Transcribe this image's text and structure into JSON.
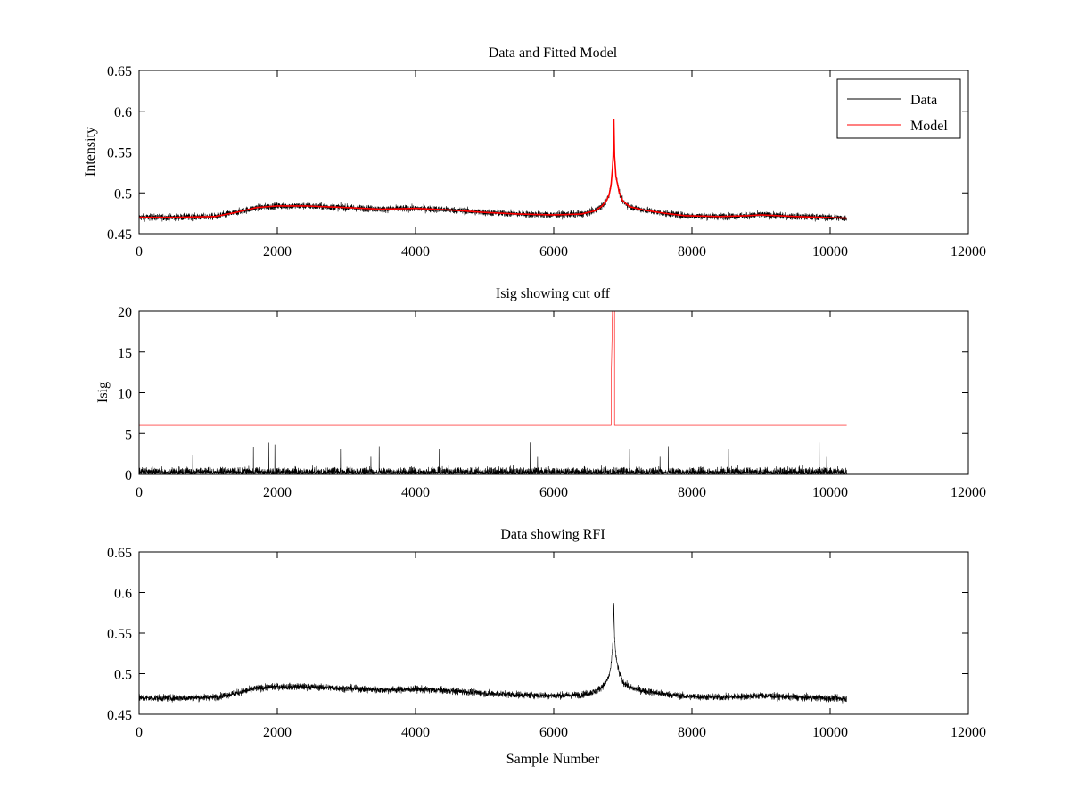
{
  "figure": {
    "background": "#ffffff"
  },
  "chart_data": [
    {
      "id": "top",
      "type": "line",
      "title": "Data and Fitted Model",
      "xlabel": "",
      "ylabel": "Intensity",
      "xlim": [
        0,
        12000
      ],
      "ylim": [
        0.45,
        0.65
      ],
      "xticks": [
        0,
        2000,
        4000,
        6000,
        8000,
        10000,
        12000
      ],
      "xtick_labels": [
        "0",
        "2000",
        "4000",
        "6000",
        "8000",
        "10000",
        "12000"
      ],
      "yticks": [
        0.45,
        0.5,
        0.55,
        0.6,
        0.65
      ],
      "ytick_labels": [
        "0.45",
        "0.5",
        "0.55",
        "0.6",
        "0.65"
      ],
      "grid": false,
      "legend": {
        "placement": "top-right",
        "entries": [
          "Data",
          "Model"
        ]
      },
      "series": [
        {
          "name": "Data",
          "color": "#000000",
          "kind": "noisy",
          "n_samples": 10240,
          "noise_amplitude": 0.004,
          "baseline": {
            "x": [
              0,
              500,
              1100,
              1400,
              1700,
              2000,
              2400,
              3000,
              3500,
              4000,
              4500,
              5000,
              5500,
              6000,
              6400,
              6600,
              6700,
              6760,
              6800,
              6830,
              6850,
              6860,
              6870,
              6880,
              6900,
              6950,
              7000,
              7100,
              7300,
              7600,
              7900,
              8400,
              8800,
              9000,
              9500,
              10240
            ],
            "y": [
              0.47,
              0.47,
              0.471,
              0.476,
              0.482,
              0.484,
              0.484,
              0.482,
              0.48,
              0.481,
              0.479,
              0.476,
              0.474,
              0.473,
              0.474,
              0.478,
              0.484,
              0.49,
              0.497,
              0.51,
              0.53,
              0.545,
              0.59,
              0.545,
              0.52,
              0.5,
              0.49,
              0.483,
              0.479,
              0.475,
              0.472,
              0.471,
              0.472,
              0.473,
              0.471,
              0.469
            ]
          }
        },
        {
          "name": "Model",
          "color": "#ff0000",
          "kind": "smooth",
          "baseline": {
            "x": [
              0,
              500,
              1100,
              1400,
              1700,
              2000,
              2400,
              3000,
              3500,
              4000,
              4500,
              5000,
              5500,
              6000,
              6400,
              6600,
              6700,
              6760,
              6800,
              6830,
              6850,
              6860,
              6870,
              6880,
              6900,
              6950,
              7000,
              7100,
              7300,
              7600,
              7900,
              8400,
              8800,
              9000,
              9500,
              10240
            ],
            "y": [
              0.47,
              0.47,
              0.471,
              0.476,
              0.482,
              0.484,
              0.484,
              0.482,
              0.48,
              0.481,
              0.479,
              0.476,
              0.474,
              0.473,
              0.474,
              0.478,
              0.484,
              0.49,
              0.497,
              0.51,
              0.53,
              0.545,
              0.59,
              0.545,
              0.52,
              0.5,
              0.49,
              0.483,
              0.479,
              0.475,
              0.472,
              0.471,
              0.472,
              0.473,
              0.471,
              0.469
            ]
          }
        }
      ]
    },
    {
      "id": "middle",
      "type": "line",
      "title": "Isig showing cut off",
      "xlabel": "",
      "ylabel": "Isig",
      "xlim": [
        0,
        12000
      ],
      "ylim": [
        0,
        20
      ],
      "xticks": [
        0,
        2000,
        4000,
        6000,
        8000,
        10000,
        12000
      ],
      "xtick_labels": [
        "0",
        "2000",
        "4000",
        "6000",
        "8000",
        "10000",
        "12000"
      ],
      "yticks": [
        0,
        5,
        10,
        15,
        20
      ],
      "ytick_labels": [
        "0",
        "5",
        "10",
        "15",
        "20"
      ],
      "grid": false,
      "series": [
        {
          "name": "Isig",
          "color": "#000000",
          "kind": "noisy_abs",
          "n_samples": 10240,
          "typical_max": 2.2,
          "peak_max": 4.0
        },
        {
          "name": "Cut off",
          "color": "#ff0000",
          "kind": "step",
          "points": {
            "x": [
              0,
              6830,
              6830,
              6835,
              6850,
              6850,
              6880,
              6880,
              10240
            ],
            "y": [
              6,
              6,
              12.5,
              13,
              20,
              20,
              20,
              6,
              6
            ]
          }
        }
      ]
    },
    {
      "id": "bottom",
      "type": "line",
      "title": "Data showing RFI",
      "xlabel": "Sample Number",
      "ylabel": "",
      "xlim": [
        0,
        12000
      ],
      "ylim": [
        0.45,
        0.65
      ],
      "xticks": [
        0,
        2000,
        4000,
        6000,
        8000,
        10000,
        12000
      ],
      "xtick_labels": [
        "0",
        "2000",
        "4000",
        "6000",
        "8000",
        "10000",
        "12000"
      ],
      "yticks": [
        0.45,
        0.5,
        0.55,
        0.6,
        0.65
      ],
      "ytick_labels": [
        "0.45",
        "0.5",
        "0.55",
        "0.6",
        "0.65"
      ],
      "grid": false,
      "series": [
        {
          "name": "Data",
          "color": "#000000",
          "kind": "noisy",
          "n_samples": 10240,
          "noise_amplitude": 0.004,
          "baseline": {
            "x": [
              0,
              500,
              1100,
              1400,
              1700,
              2000,
              2400,
              3000,
              3500,
              4000,
              4500,
              5000,
              5500,
              6000,
              6400,
              6600,
              6700,
              6760,
              6800,
              6830,
              6850,
              6860,
              6870,
              6880,
              6900,
              6950,
              7000,
              7100,
              7300,
              7600,
              7900,
              8400,
              8800,
              9000,
              9500,
              10240
            ],
            "y": [
              0.47,
              0.47,
              0.471,
              0.476,
              0.482,
              0.484,
              0.484,
              0.482,
              0.48,
              0.481,
              0.479,
              0.476,
              0.474,
              0.473,
              0.474,
              0.478,
              0.484,
              0.49,
              0.497,
              0.51,
              0.53,
              0.545,
              0.59,
              0.545,
              0.52,
              0.5,
              0.49,
              0.483,
              0.479,
              0.475,
              0.472,
              0.471,
              0.472,
              0.473,
              0.471,
              0.469
            ]
          }
        }
      ]
    }
  ]
}
